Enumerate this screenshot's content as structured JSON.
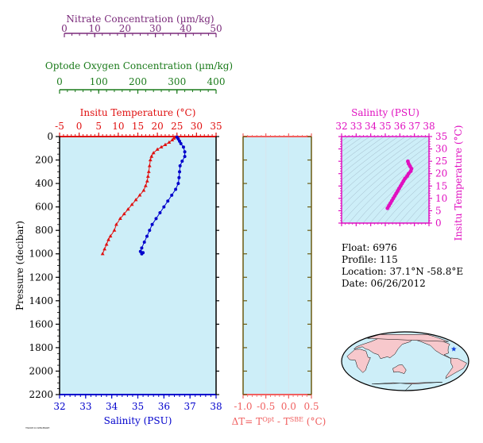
{
  "info": {
    "float": "Float:  6976",
    "profile": "Profile:  115",
    "location": "Location:  37.1°N  -58.8°E",
    "date": "Date:  06/26/2012"
  },
  "footnote": "TSO0512 KBLBSOE",
  "colors": {
    "nitrate": "#7a2a7a",
    "oxygen": "#1a7a1a",
    "temperature": "#e01010",
    "salinity": "#0000cc",
    "ts": "#e010c0",
    "delta": "#f06060",
    "panel": "#cdeef8",
    "frame2": "#6b5a10"
  },
  "chart_data": [
    {
      "type": "line",
      "name": "profile",
      "ylabel": "Pressure (decibar)",
      "ylim": [
        2200,
        0
      ],
      "yticks": [
        0,
        200,
        400,
        600,
        800,
        1000,
        1200,
        1400,
        1600,
        1800,
        2000,
        2200
      ],
      "axes": {
        "nitrate": {
          "label": "Nitrate Concentration (µm/kg)",
          "lim": [
            0,
            50
          ],
          "ticks": [
            0,
            10,
            20,
            30,
            40,
            50
          ]
        },
        "oxygen": {
          "label": "Optode Oxygen Concentration (µm/kg)",
          "lim": [
            0,
            400
          ],
          "ticks": [
            0,
            100,
            200,
            300,
            400
          ]
        },
        "temperature": {
          "label": "Insitu Temperature (°C)",
          "lim": [
            -5,
            35
          ],
          "ticks": [
            -5,
            0,
            5,
            10,
            15,
            20,
            25,
            30,
            35
          ]
        },
        "salinity": {
          "label": "Salinity (PSU)",
          "lim": [
            32,
            38
          ],
          "ticks": [
            32,
            33,
            34,
            35,
            36,
            37,
            38
          ]
        }
      },
      "series": [
        {
          "axis": "temperature",
          "points": [
            [
              24.5,
              5
            ],
            [
              24.2,
              15
            ],
            [
              23.8,
              30
            ],
            [
              23.0,
              50
            ],
            [
              22.0,
              70
            ],
            [
              21.0,
              90
            ],
            [
              20.0,
              110
            ],
            [
              19.0,
              140
            ],
            [
              18.5,
              170
            ],
            [
              18.2,
              200
            ],
            [
              18.0,
              250
            ],
            [
              17.8,
              300
            ],
            [
              17.6,
              340
            ],
            [
              17.4,
              380
            ],
            [
              17.0,
              420
            ],
            [
              16.5,
              460
            ],
            [
              15.5,
              500
            ],
            [
              14.5,
              540
            ],
            [
              13.5,
              580
            ],
            [
              12.5,
              620
            ],
            [
              11.5,
              660
            ],
            [
              10.5,
              700
            ],
            [
              9.5,
              750
            ],
            [
              9.0,
              800
            ],
            [
              8.0,
              850
            ],
            [
              7.5,
              880
            ],
            [
              7.0,
              920
            ],
            [
              6.5,
              960
            ],
            [
              6.0,
              1000
            ]
          ]
        },
        {
          "axis": "salinity",
          "points": [
            [
              36.5,
              5
            ],
            [
              36.55,
              20
            ],
            [
              36.6,
              40
            ],
            [
              36.65,
              60
            ],
            [
              36.75,
              90
            ],
            [
              36.8,
              130
            ],
            [
              36.8,
              170
            ],
            [
              36.7,
              210
            ],
            [
              36.62,
              250
            ],
            [
              36.6,
              300
            ],
            [
              36.58,
              350
            ],
            [
              36.55,
              400
            ],
            [
              36.45,
              450
            ],
            [
              36.3,
              500
            ],
            [
              36.15,
              550
            ],
            [
              36.0,
              600
            ],
            [
              35.85,
              650
            ],
            [
              35.7,
              700
            ],
            [
              35.55,
              750
            ],
            [
              35.45,
              800
            ],
            [
              35.35,
              850
            ],
            [
              35.25,
              900
            ],
            [
              35.15,
              950
            ],
            [
              35.1,
              980
            ],
            [
              35.2,
              990
            ],
            [
              35.15,
              1000
            ]
          ]
        }
      ]
    },
    {
      "type": "line",
      "name": "delta-t",
      "xlabel": "ΔT= TOpt - TSBE (°C)",
      "xlim": [
        -1.0,
        0.5
      ],
      "xticks": [
        -1.0,
        -0.5,
        0.0,
        0.5
      ],
      "xticklabels": [
        "-1.0",
        "-0.5",
        "0.0",
        "0.5"
      ],
      "ylim": [
        2200,
        0
      ],
      "series": []
    },
    {
      "type": "scatter",
      "name": "ts-diagram",
      "xlabel": "Salinity (PSU)",
      "ylabel": "Insitu Temperature (°C)",
      "xlim": [
        32,
        38
      ],
      "ylim": [
        0,
        35
      ],
      "xticks": [
        32,
        33,
        34,
        35,
        36,
        37,
        38
      ],
      "yticks": [
        0,
        5,
        10,
        15,
        20,
        25,
        30,
        35
      ],
      "points": [
        [
          35.15,
          6
        ],
        [
          35.25,
          7
        ],
        [
          35.35,
          8
        ],
        [
          35.45,
          9
        ],
        [
          35.55,
          10
        ],
        [
          35.65,
          11
        ],
        [
          35.75,
          12
        ],
        [
          35.85,
          13
        ],
        [
          35.95,
          14
        ],
        [
          36.05,
          15
        ],
        [
          36.15,
          16
        ],
        [
          36.25,
          17
        ],
        [
          36.35,
          18
        ],
        [
          36.5,
          19
        ],
        [
          36.6,
          20
        ],
        [
          36.75,
          21
        ],
        [
          36.8,
          22
        ],
        [
          36.7,
          23
        ],
        [
          36.6,
          24
        ],
        [
          36.55,
          25
        ]
      ]
    }
  ],
  "map": {
    "float_lat": 37.1,
    "float_lon": -58.8
  }
}
